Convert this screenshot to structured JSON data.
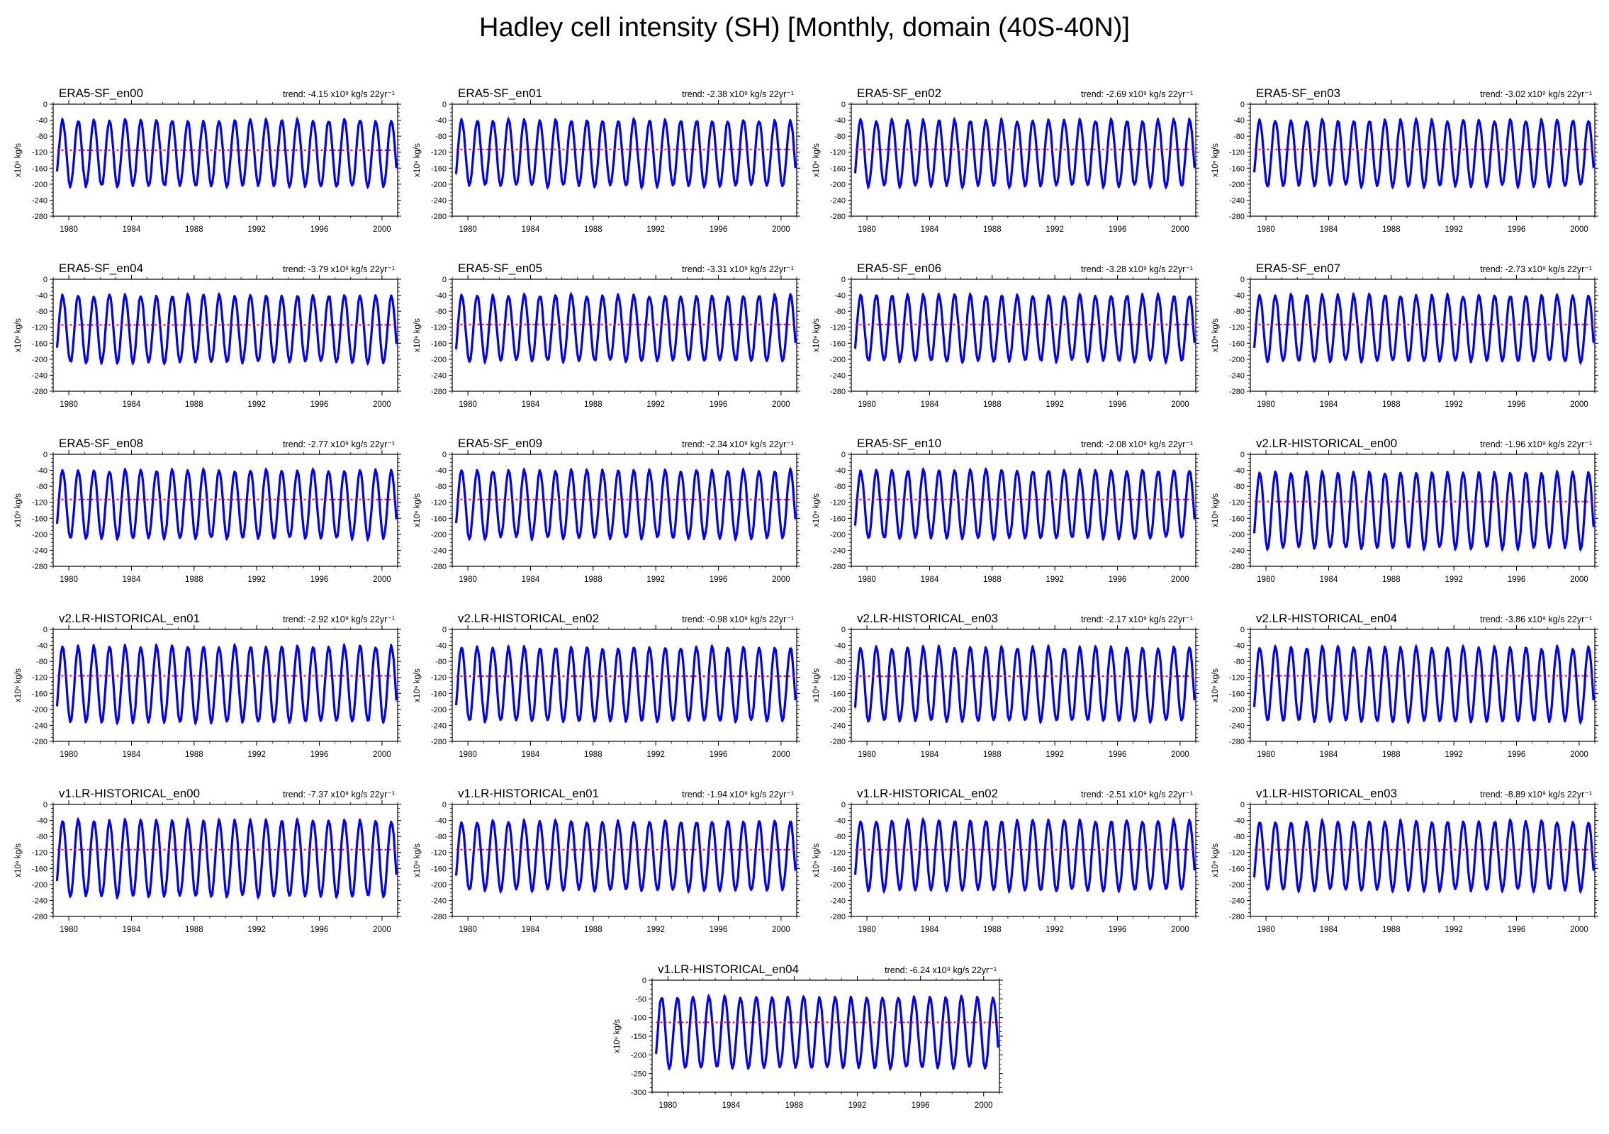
{
  "page_title": "Hadley cell intensity (SH) [Monthly, domain (40S-40N)]",
  "colors": {
    "main_series": "#0000ff",
    "raw_series": "#999999",
    "mean_line": "#ff0000",
    "axes": "#000000"
  },
  "chart_data": [
    {
      "type": "line",
      "title": "ERA5-SF_en00",
      "trend_label": "trend: -4.15 x10⁹ kg/s 22yr⁻¹",
      "ylabel": "x10⁹ kg/s",
      "ylim": [
        -280,
        0
      ],
      "yticks": [
        0,
        -40,
        -80,
        -120,
        -160,
        -200,
        -240,
        -280
      ],
      "xlim": [
        1979,
        2001
      ],
      "xticks": [
        1980,
        1984,
        1988,
        1992,
        1996,
        2000
      ],
      "mean_value": -115,
      "series": [
        {
          "name": "",
          "peak": -40,
          "trough": -205
        }
      ]
    },
    {
      "type": "line",
      "title": "ERA5-SF_en01",
      "trend_label": "trend: -2.38 x10⁹ kg/s 22yr⁻¹",
      "ylabel": "x10⁹ kg/s",
      "ylim": [
        -280,
        0
      ],
      "yticks": [
        0,
        -40,
        -80,
        -120,
        -160,
        -200,
        -240,
        -280
      ],
      "xlim": [
        1979,
        2001
      ],
      "xticks": [
        1980,
        1984,
        1988,
        1992,
        1996,
        2000
      ],
      "mean_value": -113,
      "series": [
        {
          "name": "",
          "peak": -40,
          "trough": -205
        }
      ]
    },
    {
      "type": "line",
      "title": "ERA5-SF_en02",
      "trend_label": "trend: -2.69 x10⁹ kg/s 22yr⁻¹",
      "ylabel": "x10⁹ kg/s",
      "ylim": [
        -280,
        0
      ],
      "yticks": [
        0,
        -40,
        -80,
        -120,
        -160,
        -200,
        -240,
        -280
      ],
      "xlim": [
        1979,
        2001
      ],
      "xticks": [
        1980,
        1984,
        1988,
        1992,
        1996,
        2000
      ],
      "mean_value": -113,
      "series": [
        {
          "name": "",
          "peak": -40,
          "trough": -205
        }
      ]
    },
    {
      "type": "line",
      "title": "ERA5-SF_en03",
      "trend_label": "trend: -3.02 x10⁹ kg/s 22yr⁻¹",
      "ylabel": "x10⁹ kg/s",
      "ylim": [
        -280,
        0
      ],
      "yticks": [
        0,
        -40,
        -80,
        -120,
        -160,
        -200,
        -240,
        -280
      ],
      "xlim": [
        1979,
        2001
      ],
      "xticks": [
        1980,
        1984,
        1988,
        1992,
        1996,
        2000
      ],
      "mean_value": -113,
      "series": [
        {
          "name": "",
          "peak": -40,
          "trough": -205
        }
      ]
    },
    {
      "type": "line",
      "title": "ERA5-SF_en04",
      "trend_label": "trend: -3.79 x10⁹ kg/s 22yr⁻¹",
      "ylabel": "x10⁹ kg/s",
      "ylim": [
        -280,
        0
      ],
      "yticks": [
        0,
        -40,
        -80,
        -120,
        -160,
        -200,
        -240,
        -280
      ],
      "xlim": [
        1979,
        2001
      ],
      "xticks": [
        1980,
        1984,
        1988,
        1992,
        1996,
        2000
      ],
      "mean_value": -114,
      "series": [
        {
          "name": "",
          "peak": -40,
          "trough": -208
        }
      ]
    },
    {
      "type": "line",
      "title": "ERA5-SF_en05",
      "trend_label": "trend: -3.31 x10⁹ kg/s 22yr⁻¹",
      "ylabel": "x10⁹ kg/s",
      "ylim": [
        -280,
        0
      ],
      "yticks": [
        0,
        -40,
        -80,
        -120,
        -160,
        -200,
        -240,
        -280
      ],
      "xlim": [
        1979,
        2001
      ],
      "xticks": [
        1980,
        1984,
        1988,
        1992,
        1996,
        2000
      ],
      "mean_value": -113,
      "series": [
        {
          "name": "",
          "peak": -40,
          "trough": -205
        }
      ]
    },
    {
      "type": "line",
      "title": "ERA5-SF_en06",
      "trend_label": "trend: -3.28 x10⁹ kg/s 22yr⁻¹",
      "ylabel": "x10⁹ kg/s",
      "ylim": [
        -280,
        0
      ],
      "yticks": [
        0,
        -40,
        -80,
        -120,
        -160,
        -200,
        -240,
        -280
      ],
      "xlim": [
        1979,
        2001
      ],
      "xticks": [
        1980,
        1984,
        1988,
        1992,
        1996,
        2000
      ],
      "mean_value": -113,
      "series": [
        {
          "name": "",
          "peak": -40,
          "trough": -205
        }
      ]
    },
    {
      "type": "line",
      "title": "ERA5-SF_en07",
      "trend_label": "trend: -2.73 x10⁹ kg/s 22yr⁻¹",
      "ylabel": "x10⁹ kg/s",
      "ylim": [
        -280,
        0
      ],
      "yticks": [
        0,
        -40,
        -80,
        -120,
        -160,
        -200,
        -240,
        -280
      ],
      "xlim": [
        1979,
        2001
      ],
      "xticks": [
        1980,
        1984,
        1988,
        1992,
        1996,
        2000
      ],
      "mean_value": -113,
      "series": [
        {
          "name": "",
          "peak": -40,
          "trough": -205
        }
      ]
    },
    {
      "type": "line",
      "title": "ERA5-SF_en08",
      "trend_label": "trend: -2.77 x10⁹ kg/s 22yr⁻¹",
      "ylabel": "x10⁹ kg/s",
      "ylim": [
        -280,
        0
      ],
      "yticks": [
        0,
        -40,
        -80,
        -120,
        -160,
        -200,
        -240,
        -280
      ],
      "xlim": [
        1979,
        2001
      ],
      "xticks": [
        1980,
        1984,
        1988,
        1992,
        1996,
        2000
      ],
      "mean_value": -113,
      "series": [
        {
          "name": "",
          "peak": -40,
          "trough": -210
        }
      ]
    },
    {
      "type": "line",
      "title": "ERA5-SF_en09",
      "trend_label": "trend: -2.34 x10⁹ kg/s 22yr⁻¹",
      "ylabel": "x10⁹ kg/s",
      "ylim": [
        -280,
        0
      ],
      "yticks": [
        0,
        -40,
        -80,
        -120,
        -160,
        -200,
        -240,
        -280
      ],
      "xlim": [
        1979,
        2001
      ],
      "xticks": [
        1980,
        1984,
        1988,
        1992,
        1996,
        2000
      ],
      "mean_value": -113,
      "series": [
        {
          "name": "",
          "peak": -40,
          "trough": -210
        }
      ]
    },
    {
      "type": "line",
      "title": "ERA5-SF_en10",
      "trend_label": "trend: -2.08 x10⁹ kg/s 22yr⁻¹",
      "ylabel": "x10⁹ kg/s",
      "ylim": [
        -280,
        0
      ],
      "yticks": [
        0,
        -40,
        -80,
        -120,
        -160,
        -200,
        -240,
        -280
      ],
      "xlim": [
        1979,
        2001
      ],
      "xticks": [
        1980,
        1984,
        1988,
        1992,
        1996,
        2000
      ],
      "mean_value": -113,
      "series": [
        {
          "name": "",
          "peak": -40,
          "trough": -210
        }
      ]
    },
    {
      "type": "line",
      "title": "v2.LR-HISTORICAL_en00",
      "trend_label": "trend: -1.96 x10⁹ kg/s 22yr⁻¹",
      "ylabel": "x10⁹ kg/s",
      "ylim": [
        -280,
        0
      ],
      "yticks": [
        0,
        -40,
        -80,
        -120,
        -160,
        -200,
        -240,
        -280
      ],
      "xlim": [
        1979,
        2001
      ],
      "xticks": [
        1980,
        1984,
        1988,
        1992,
        1996,
        2000
      ],
      "mean_value": -118,
      "series": [
        {
          "name": "",
          "peak": -45,
          "trough": -235
        }
      ]
    },
    {
      "type": "line",
      "title": "v2.LR-HISTORICAL_en01",
      "trend_label": "trend: -2.92 x10⁹ kg/s 22yr⁻¹",
      "ylabel": "x10⁹ kg/s",
      "ylim": [
        -280,
        0
      ],
      "yticks": [
        0,
        -40,
        -80,
        -120,
        -160,
        -200,
        -240,
        -280
      ],
      "xlim": [
        1979,
        2001
      ],
      "xticks": [
        1980,
        1984,
        1988,
        1992,
        1996,
        2000
      ],
      "mean_value": -116,
      "series": [
        {
          "name": "",
          "peak": -42,
          "trough": -232
        }
      ]
    },
    {
      "type": "line",
      "title": "v2.LR-HISTORICAL_en02",
      "trend_label": "trend: -0.98 x10⁹ kg/s 22yr⁻¹",
      "ylabel": "x10⁹ kg/s",
      "ylim": [
        -280,
        0
      ],
      "yticks": [
        0,
        -40,
        -80,
        -120,
        -160,
        -200,
        -240,
        -280
      ],
      "xlim": [
        1979,
        2001
      ],
      "xticks": [
        1980,
        1984,
        1988,
        1992,
        1996,
        2000
      ],
      "mean_value": -117,
      "series": [
        {
          "name": "",
          "peak": -45,
          "trough": -230
        }
      ]
    },
    {
      "type": "line",
      "title": "v2.LR-HISTORICAL_en03",
      "trend_label": "trend: -2.17 x10⁹ kg/s 22yr⁻¹",
      "ylabel": "x10⁹ kg/s",
      "ylim": [
        -280,
        0
      ],
      "yticks": [
        0,
        -40,
        -80,
        -120,
        -160,
        -200,
        -240,
        -280
      ],
      "xlim": [
        1979,
        2001
      ],
      "xticks": [
        1980,
        1984,
        1988,
        1992,
        1996,
        2000
      ],
      "mean_value": -117,
      "series": [
        {
          "name": "",
          "peak": -45,
          "trough": -230
        }
      ]
    },
    {
      "type": "line",
      "title": "v2.LR-HISTORICAL_en04",
      "trend_label": "trend: -3.86 x10⁹ kg/s 22yr⁻¹",
      "ylabel": "x10⁹ kg/s",
      "ylim": [
        -280,
        0
      ],
      "yticks": [
        0,
        -40,
        -80,
        -120,
        -160,
        -200,
        -240,
        -280
      ],
      "xlim": [
        1979,
        2001
      ],
      "xticks": [
        1980,
        1984,
        1988,
        1992,
        1996,
        2000
      ],
      "mean_value": -116,
      "series": [
        {
          "name": "",
          "peak": -45,
          "trough": -230
        }
      ]
    },
    {
      "type": "line",
      "title": "v1.LR-HISTORICAL_en00",
      "trend_label": "trend: -7.37 x10⁹ kg/s 22yr⁻¹",
      "ylabel": "x10⁹ kg/s",
      "ylim": [
        -280,
        0
      ],
      "yticks": [
        0,
        -40,
        -80,
        -120,
        -160,
        -200,
        -240,
        -280
      ],
      "xlim": [
        1979,
        2001
      ],
      "xticks": [
        1980,
        1984,
        1988,
        1992,
        1996,
        2000
      ],
      "mean_value": -113,
      "series": [
        {
          "name": "",
          "peak": -40,
          "trough": -230
        }
      ]
    },
    {
      "type": "line",
      "title": "v1.LR-HISTORICAL_en01",
      "trend_label": "trend: -1.94 x10⁹ kg/s 22yr⁻¹",
      "ylabel": "x10⁹ kg/s",
      "ylim": [
        -280,
        0
      ],
      "yticks": [
        0,
        -40,
        -80,
        -120,
        -160,
        -200,
        -240,
        -280
      ],
      "xlim": [
        1979,
        2001
      ],
      "xticks": [
        1980,
        1984,
        1988,
        1992,
        1996,
        2000
      ],
      "mean_value": -113,
      "series": [
        {
          "name": "",
          "peak": -42,
          "trough": -215
        }
      ]
    },
    {
      "type": "line",
      "title": "v1.LR-HISTORICAL_en02",
      "trend_label": "trend: -2.51 x10⁹ kg/s 22yr⁻¹",
      "ylabel": "x10⁹ kg/s",
      "ylim": [
        -280,
        0
      ],
      "yticks": [
        0,
        -40,
        -80,
        -120,
        -160,
        -200,
        -240,
        -280
      ],
      "xlim": [
        1979,
        2001
      ],
      "xticks": [
        1980,
        1984,
        1988,
        1992,
        1996,
        2000
      ],
      "mean_value": -113,
      "series": [
        {
          "name": "",
          "peak": -40,
          "trough": -215
        }
      ]
    },
    {
      "type": "line",
      "title": "v1.LR-HISTORICAL_en03",
      "trend_label": "trend: -8.89 x10⁹ kg/s 22yr⁻¹",
      "ylabel": "x10⁹ kg/s",
      "ylim": [
        -280,
        0
      ],
      "yticks": [
        0,
        -40,
        -80,
        -120,
        -160,
        -200,
        -240,
        -280
      ],
      "xlim": [
        1979,
        2001
      ],
      "xticks": [
        1980,
        1984,
        1988,
        1992,
        1996,
        2000
      ],
      "mean_value": -113,
      "series": [
        {
          "name": "",
          "peak": -42,
          "trough": -215
        }
      ]
    },
    {
      "type": "line",
      "title": "v1.LR-HISTORICAL_en04",
      "trend_label": "trend: -6.24 x10⁹ kg/s 22yr⁻¹",
      "ylabel": "x10⁹ kg/s",
      "ylim": [
        -300,
        0
      ],
      "yticks": [
        0,
        -50,
        -100,
        -150,
        -200,
        -250,
        -300
      ],
      "xlim": [
        1979,
        2001
      ],
      "xticks": [
        1980,
        1984,
        1988,
        1992,
        1996,
        2000
      ],
      "mean_value": -113,
      "series": [
        {
          "name": "",
          "peak": -45,
          "trough": -235
        }
      ]
    }
  ]
}
